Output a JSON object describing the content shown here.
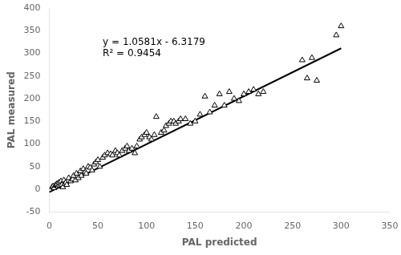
{
  "chart_data": {
    "type": "scatter",
    "xlabel": "PAL predicted",
    "ylabel": "PAL measured",
    "xlim": [
      0,
      350
    ],
    "ylim": [
      -50,
      400
    ],
    "xticks": [
      0,
      50,
      100,
      150,
      200,
      250,
      300,
      350
    ],
    "yticks": [
      -50,
      0,
      50,
      100,
      150,
      200,
      250,
      300,
      350,
      400
    ],
    "grid": false,
    "series": [
      {
        "type": "scatter",
        "color": "black",
        "marker": "triangle",
        "x": [
          3,
          4,
          5,
          6,
          7,
          8,
          9,
          10,
          11,
          12,
          13,
          14,
          15,
          16,
          17,
          18,
          20,
          22,
          24,
          25,
          27,
          28,
          30,
          32,
          33,
          35,
          37,
          38,
          40,
          42,
          44,
          46,
          48,
          50,
          52,
          55,
          57,
          60,
          63,
          65,
          68,
          70,
          72,
          75,
          78,
          80,
          82,
          85,
          88,
          90,
          93,
          95,
          98,
          100,
          103,
          105,
          108,
          110,
          115,
          118,
          120,
          123,
          125,
          128,
          130,
          133,
          135,
          140,
          145,
          150,
          155,
          160,
          165,
          170,
          175,
          180,
          185,
          190,
          195,
          200,
          205,
          210,
          215,
          220,
          260,
          265,
          270,
          275,
          295,
          300
        ],
        "values": [
          5,
          7,
          3,
          8,
          10,
          12,
          6,
          15,
          8,
          18,
          10,
          5,
          20,
          12,
          15,
          10,
          25,
          18,
          22,
          30,
          20,
          35,
          25,
          40,
          30,
          45,
          38,
          35,
          50,
          48,
          42,
          55,
          60,
          65,
          50,
          70,
          75,
          80,
          78,
          75,
          85,
          80,
          75,
          85,
          90,
          95,
          85,
          90,
          80,
          95,
          110,
          115,
          120,
          125,
          115,
          110,
          120,
          160,
          125,
          130,
          140,
          145,
          150,
          150,
          145,
          150,
          155,
          155,
          145,
          150,
          165,
          205,
          170,
          185,
          210,
          185,
          215,
          200,
          195,
          210,
          215,
          220,
          210,
          215,
          285,
          245,
          290,
          240,
          340,
          360
        ]
      },
      {
        "type": "line",
        "color": "black",
        "line_style": "solid",
        "x": [
          0,
          300
        ],
        "values": [
          -6.3179,
          311.1121
        ]
      }
    ],
    "annotations": [
      {
        "text": "y = 1.0581x - 6.3179",
        "x": 55,
        "y": 335
      },
      {
        "text": "R² = 0.9454",
        "x": 55,
        "y": 310
      }
    ]
  }
}
